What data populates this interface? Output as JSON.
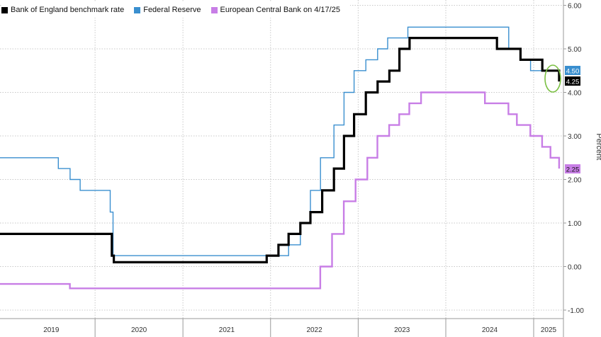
{
  "chart_data": {
    "type": "line",
    "ylabel": "Percent",
    "ylim": [
      -1.0,
      6.0
    ],
    "yticks": [
      "6.00",
      "5.00",
      "4.00",
      "3.00",
      "2.00",
      "1.00",
      "0.00",
      "-1.00"
    ],
    "xlim": [
      "2018-12-01",
      "2025-05-05"
    ],
    "xticks": [
      "2019",
      "2020",
      "2021",
      "2022",
      "2023",
      "2024",
      "2025"
    ],
    "grid": true,
    "legend_position": "top-left",
    "series": [
      {
        "name": "Bank of England benchmark rate",
        "color": "#000000",
        "last_label": "4.25",
        "points": [
          [
            "2018-12-01",
            0.75
          ],
          [
            "2020-03-11",
            0.75
          ],
          [
            "2020-03-11",
            0.25
          ],
          [
            "2020-03-19",
            0.25
          ],
          [
            "2020-03-19",
            0.1
          ],
          [
            "2021-12-16",
            0.1
          ],
          [
            "2021-12-16",
            0.25
          ],
          [
            "2022-02-03",
            0.25
          ],
          [
            "2022-02-03",
            0.5
          ],
          [
            "2022-03-17",
            0.5
          ],
          [
            "2022-03-17",
            0.75
          ],
          [
            "2022-05-05",
            0.75
          ],
          [
            "2022-05-05",
            1.0
          ],
          [
            "2022-06-16",
            1.0
          ],
          [
            "2022-06-16",
            1.25
          ],
          [
            "2022-08-04",
            1.25
          ],
          [
            "2022-08-04",
            1.75
          ],
          [
            "2022-09-22",
            1.75
          ],
          [
            "2022-09-22",
            2.25
          ],
          [
            "2022-11-03",
            2.25
          ],
          [
            "2022-11-03",
            3.0
          ],
          [
            "2022-12-15",
            3.0
          ],
          [
            "2022-12-15",
            3.5
          ],
          [
            "2023-02-02",
            3.5
          ],
          [
            "2023-02-02",
            4.0
          ],
          [
            "2023-03-23",
            4.0
          ],
          [
            "2023-03-23",
            4.25
          ],
          [
            "2023-05-11",
            4.25
          ],
          [
            "2023-05-11",
            4.5
          ],
          [
            "2023-06-22",
            4.5
          ],
          [
            "2023-06-22",
            5.0
          ],
          [
            "2023-08-03",
            5.0
          ],
          [
            "2023-08-03",
            5.25
          ],
          [
            "2024-08-01",
            5.25
          ],
          [
            "2024-08-01",
            5.0
          ],
          [
            "2024-11-07",
            5.0
          ],
          [
            "2024-11-07",
            4.75
          ],
          [
            "2025-02-06",
            4.75
          ],
          [
            "2025-02-06",
            4.5
          ],
          [
            "2025-04-17",
            4.5
          ],
          [
            "2025-04-17",
            4.25
          ]
        ]
      },
      {
        "name": "Federal Reserve",
        "color": "#3a8fcf",
        "last_label": "4.50",
        "points": [
          [
            "2018-12-01",
            2.5
          ],
          [
            "2019-08-01",
            2.5
          ],
          [
            "2019-08-01",
            2.25
          ],
          [
            "2019-09-19",
            2.25
          ],
          [
            "2019-09-19",
            2.0
          ],
          [
            "2019-10-31",
            2.0
          ],
          [
            "2019-10-31",
            1.75
          ],
          [
            "2020-03-04",
            1.75
          ],
          [
            "2020-03-04",
            1.25
          ],
          [
            "2020-03-16",
            1.25
          ],
          [
            "2020-03-16",
            0.25
          ],
          [
            "2022-03-17",
            0.25
          ],
          [
            "2022-03-17",
            0.5
          ],
          [
            "2022-05-05",
            0.5
          ],
          [
            "2022-05-05",
            1.0
          ],
          [
            "2022-06-16",
            1.0
          ],
          [
            "2022-06-16",
            1.75
          ],
          [
            "2022-07-28",
            1.75
          ],
          [
            "2022-07-28",
            2.5
          ],
          [
            "2022-09-22",
            2.5
          ],
          [
            "2022-09-22",
            3.25
          ],
          [
            "2022-11-03",
            3.25
          ],
          [
            "2022-11-03",
            4.0
          ],
          [
            "2022-12-15",
            4.0
          ],
          [
            "2022-12-15",
            4.5
          ],
          [
            "2023-02-02",
            4.5
          ],
          [
            "2023-02-02",
            4.75
          ],
          [
            "2023-03-23",
            4.75
          ],
          [
            "2023-03-23",
            5.0
          ],
          [
            "2023-05-04",
            5.0
          ],
          [
            "2023-05-04",
            5.25
          ],
          [
            "2023-07-27",
            5.25
          ],
          [
            "2023-07-27",
            5.5
          ],
          [
            "2024-09-19",
            5.5
          ],
          [
            "2024-09-19",
            5.0
          ],
          [
            "2024-11-08",
            5.0
          ],
          [
            "2024-11-08",
            4.75
          ],
          [
            "2024-12-19",
            4.75
          ],
          [
            "2024-12-19",
            4.5
          ],
          [
            "2025-04-17",
            4.5
          ]
        ]
      },
      {
        "name": "European Central Bank on 4/17/25",
        "color": "#c87ee6",
        "last_label": "2.25",
        "points": [
          [
            "2018-12-01",
            -0.4
          ],
          [
            "2019-09-18",
            -0.4
          ],
          [
            "2019-09-18",
            -0.5
          ],
          [
            "2022-07-27",
            -0.5
          ],
          [
            "2022-07-27",
            0.0
          ],
          [
            "2022-09-14",
            0.0
          ],
          [
            "2022-09-14",
            0.75
          ],
          [
            "2022-11-02",
            0.75
          ],
          [
            "2022-11-02",
            1.5
          ],
          [
            "2022-12-21",
            1.5
          ],
          [
            "2022-12-21",
            2.0
          ],
          [
            "2023-02-08",
            2.0
          ],
          [
            "2023-02-08",
            2.5
          ],
          [
            "2023-03-22",
            2.5
          ],
          [
            "2023-03-22",
            3.0
          ],
          [
            "2023-05-10",
            3.0
          ],
          [
            "2023-05-10",
            3.25
          ],
          [
            "2023-06-21",
            3.25
          ],
          [
            "2023-06-21",
            3.5
          ],
          [
            "2023-08-02",
            3.5
          ],
          [
            "2023-08-02",
            3.75
          ],
          [
            "2023-09-20",
            3.75
          ],
          [
            "2023-09-20",
            4.0
          ],
          [
            "2024-06-12",
            4.0
          ],
          [
            "2024-06-12",
            3.75
          ],
          [
            "2024-09-18",
            3.75
          ],
          [
            "2024-09-18",
            3.5
          ],
          [
            "2024-10-23",
            3.5
          ],
          [
            "2024-10-23",
            3.25
          ],
          [
            "2024-12-18",
            3.25
          ],
          [
            "2024-12-18",
            3.0
          ],
          [
            "2025-02-05",
            3.0
          ],
          [
            "2025-02-05",
            2.75
          ],
          [
            "2025-03-12",
            2.75
          ],
          [
            "2025-03-12",
            2.5
          ],
          [
            "2025-04-17",
            2.5
          ],
          [
            "2025-04-17",
            2.25
          ]
        ]
      }
    ]
  }
}
